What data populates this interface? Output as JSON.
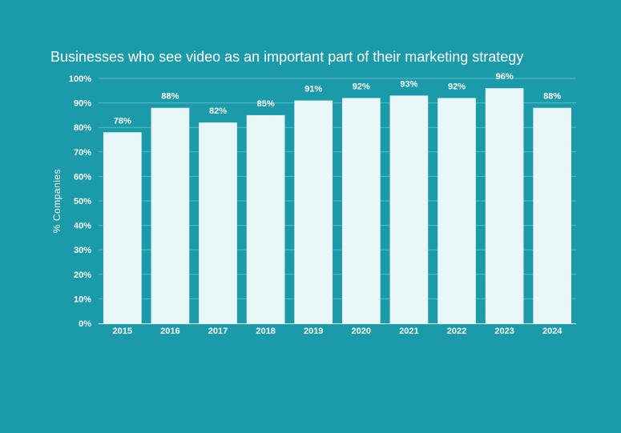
{
  "chart_data": {
    "type": "bar",
    "title": "Businesses who see video as an important part of their marketing strategy",
    "xlabel": "",
    "ylabel": "% Companies",
    "categories": [
      "2015",
      "2016",
      "2017",
      "2018",
      "2019",
      "2020",
      "2021",
      "2022",
      "2023",
      "2024"
    ],
    "values": [
      78,
      88,
      82,
      85,
      91,
      92,
      93,
      92,
      96,
      88
    ],
    "data_labels": [
      "78%",
      "88%",
      "82%",
      "85%",
      "91%",
      "92%",
      "93%",
      "92%",
      "96%",
      "88%"
    ],
    "ylim": [
      0,
      100
    ],
    "yticks": [
      0,
      10,
      20,
      30,
      40,
      50,
      60,
      70,
      80,
      90,
      100
    ],
    "ytick_labels": [
      "0%",
      "10%",
      "20%",
      "30%",
      "40%",
      "50%",
      "60%",
      "70%",
      "80%",
      "90%",
      "100%"
    ],
    "grid": true,
    "legend": "none",
    "colors": {
      "background": "#1b9aaa",
      "bar": "#eaf7f8",
      "gridline": "#5cbcc8",
      "text": "#ffffff"
    }
  }
}
